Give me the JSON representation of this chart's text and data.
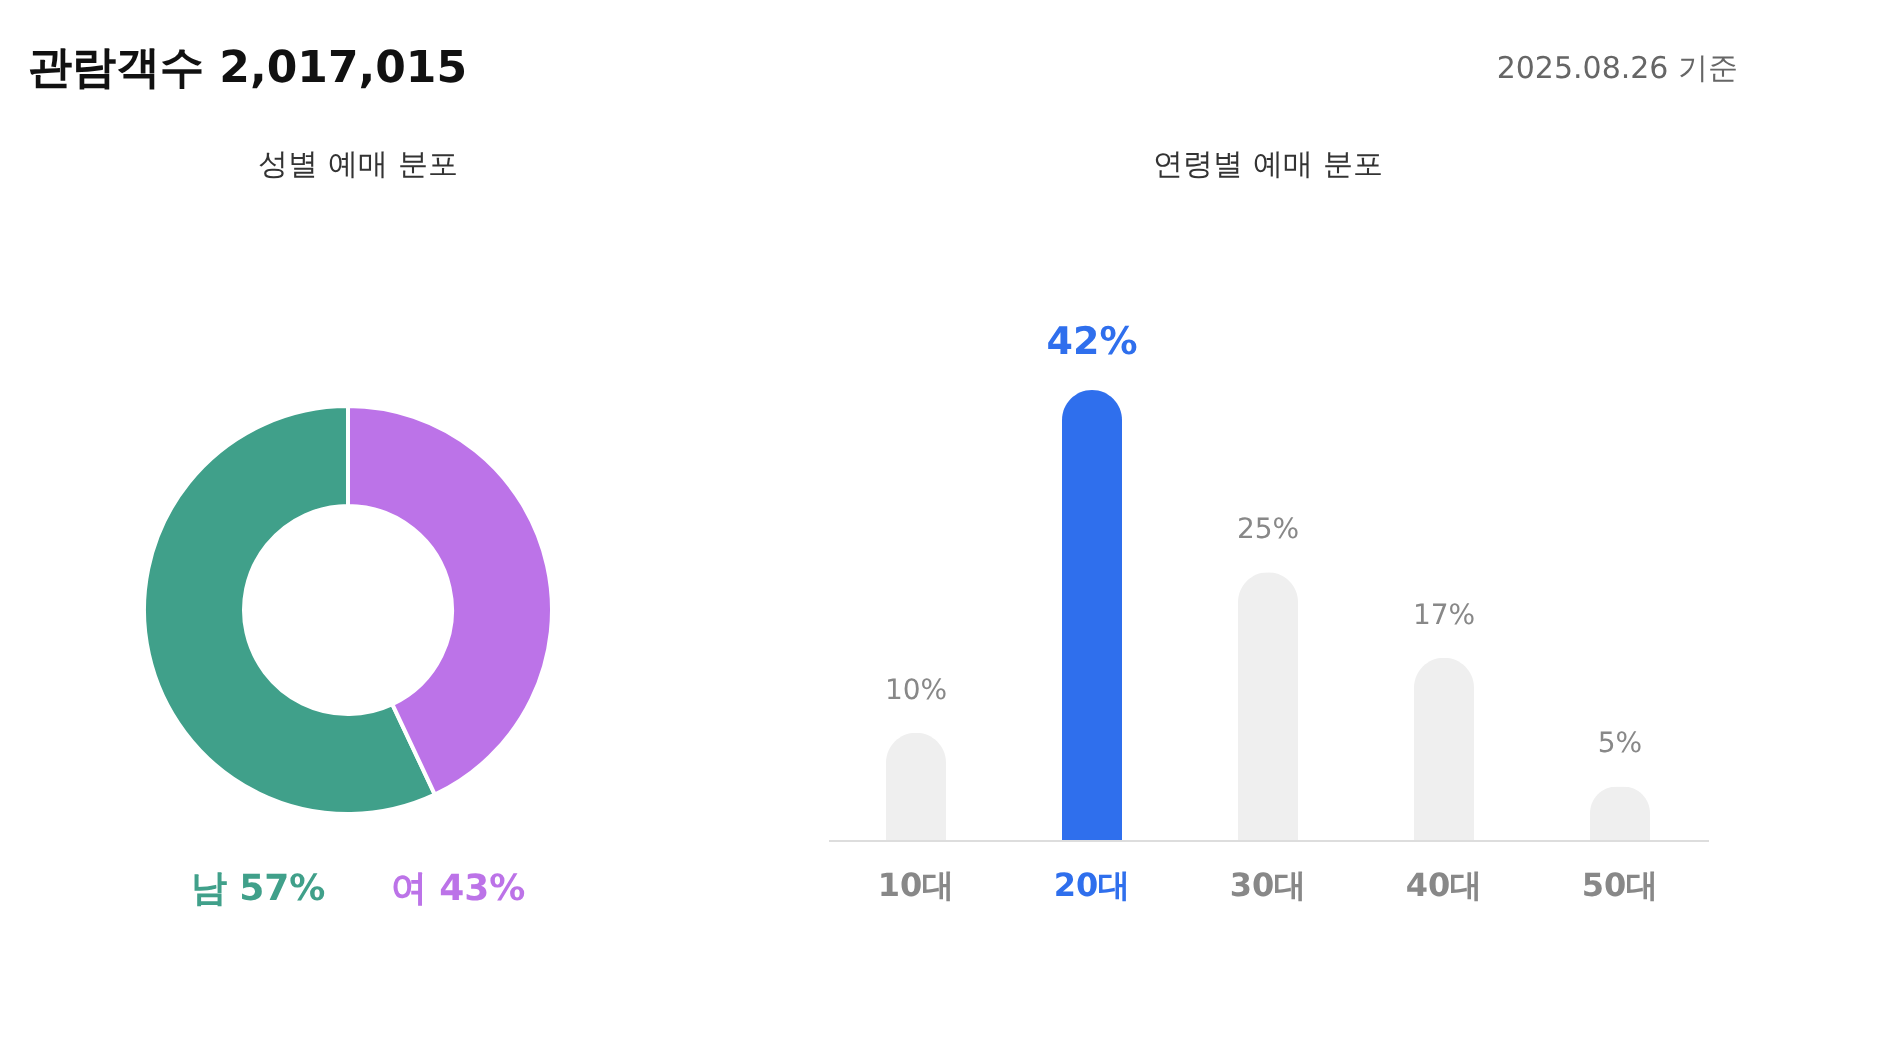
{
  "chart_data": [
    {
      "type": "donut",
      "title": "성별 예매 분포",
      "annotations": [
        "관람객수 2,017,015",
        "2025.08.26 기준"
      ],
      "categories": [
        "남",
        "여"
      ],
      "values": [
        57,
        43
      ],
      "colors": [
        "#40a08a",
        "#bc73e8"
      ],
      "value_labels": [
        "57%",
        "43%"
      ]
    },
    {
      "type": "bar",
      "title": "연령별 예매 분포",
      "categories": [
        "10대",
        "20대",
        "30대",
        "40대",
        "50대"
      ],
      "values": [
        10,
        42,
        25,
        17,
        5
      ],
      "colors": [
        "#efefef",
        "#2f6fed",
        "#efefef",
        "#efefef",
        "#efefef"
      ],
      "value_labels": [
        "10%",
        "42%",
        "25%",
        "17%",
        "5%"
      ]
    }
  ]
}
